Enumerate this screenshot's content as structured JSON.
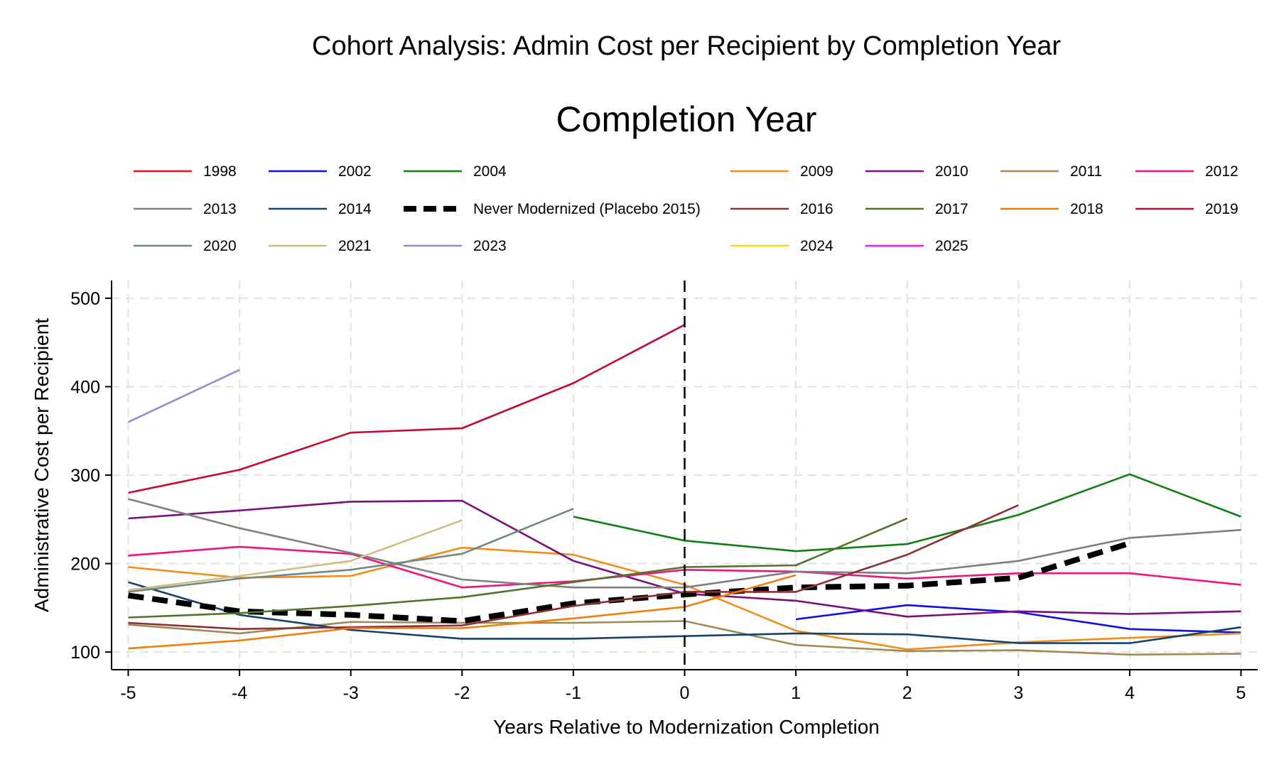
{
  "chart_data": {
    "type": "line",
    "title": "Cohort Analysis: Admin Cost per Recipient by Completion Year",
    "legend_title": "Completion Year",
    "xlabel": "Years Relative to Modernization Completion",
    "ylabel": "Administrative Cost per Recipient",
    "xlim": [
      -5.15,
      5.15
    ],
    "ylim": [
      80,
      520
    ],
    "x_ticks": [
      -5,
      -4,
      -3,
      -2,
      -1,
      0,
      1,
      2,
      3,
      4,
      5
    ],
    "y_ticks": [
      100,
      200,
      300,
      400,
      500
    ],
    "grid": true,
    "reference_line_x": 0,
    "legend_position": "top",
    "series": [
      {
        "name": "1998",
        "color": "#e8101c",
        "x": [],
        "y": []
      },
      {
        "name": "2002",
        "color": "#1010e0",
        "x": [
          1,
          2,
          3,
          4,
          5
        ],
        "y": [
          137,
          153,
          145,
          126,
          122
        ]
      },
      {
        "name": "2004",
        "color": "#108010",
        "x": [
          -1,
          0,
          1,
          2,
          3,
          4,
          5
        ],
        "y": [
          253,
          226,
          214,
          222,
          255,
          301,
          253
        ]
      },
      {
        "name": "2009",
        "color": "#f28c1a",
        "x": [
          -5,
          -4,
          -3,
          -2,
          -1,
          0,
          1,
          2,
          3,
          4,
          5
        ],
        "y": [
          196,
          184,
          186,
          218,
          210,
          176,
          124,
          103,
          111,
          116,
          121
        ]
      },
      {
        "name": "2010",
        "color": "#7b0f80",
        "x": [
          -5,
          -4,
          -3,
          -2,
          -1,
          0,
          1,
          2,
          3,
          4,
          5
        ],
        "y": [
          251,
          260,
          270,
          271,
          203,
          166,
          158,
          140,
          146,
          143,
          146
        ]
      },
      {
        "name": "2011",
        "color": "#9e8b55",
        "x": [
          -5,
          -4,
          -3,
          -2,
          -1,
          0,
          1,
          2,
          3,
          4,
          5
        ],
        "y": [
          131,
          121,
          134,
          133,
          133,
          135,
          108,
          101,
          102,
          97,
          98
        ]
      },
      {
        "name": "2012",
        "color": "#ef1480",
        "x": [
          -5,
          -4,
          -3,
          -2,
          -1,
          0,
          1,
          2,
          3,
          4,
          5
        ],
        "y": [
          209,
          219,
          211,
          173,
          180,
          193,
          191,
          183,
          189,
          189,
          176
        ]
      },
      {
        "name": "2013",
        "color": "#7f7f7f",
        "x": [
          -5,
          -4,
          -3,
          -2,
          -1,
          0,
          1,
          2,
          3,
          4,
          5
        ],
        "y": [
          273,
          240,
          212,
          182,
          173,
          173,
          191,
          189,
          203,
          229,
          238
        ]
      },
      {
        "name": "2014",
        "color": "#16436b",
        "x": [
          -5,
          -4,
          -3,
          -2,
          -1,
          0,
          1,
          2,
          3,
          4,
          5
        ],
        "y": [
          179,
          142,
          125,
          115,
          115,
          118,
          121,
          120,
          110,
          110,
          128
        ]
      },
      {
        "name": "Never Modernized (Placebo 2015)",
        "color": "#000000",
        "dashed": true,
        "x": [
          -5,
          -4,
          -3,
          -2,
          -1,
          0,
          1,
          2,
          3,
          4
        ],
        "y": [
          164,
          146,
          142,
          135,
          155,
          165,
          173,
          175,
          184,
          223
        ]
      },
      {
        "name": "2016",
        "color": "#8e3038",
        "x": [
          -5,
          -4,
          -3,
          -2,
          -1,
          0,
          1,
          2,
          3
        ],
        "y": [
          133,
          126,
          128,
          130,
          152,
          168,
          168,
          210,
          266
        ]
      },
      {
        "name": "2017",
        "color": "#55742a",
        "x": [
          -5,
          -4,
          -3,
          -2,
          -1,
          0,
          1,
          2
        ],
        "y": [
          139,
          144,
          152,
          162,
          179,
          196,
          198,
          251
        ]
      },
      {
        "name": "2018",
        "color": "#ef7f08",
        "x": [
          -5,
          -4,
          -3,
          -2,
          -1,
          0,
          1
        ],
        "y": [
          104,
          113,
          127,
          127,
          138,
          151,
          187
        ]
      },
      {
        "name": "2019",
        "color": "#c10a36",
        "x": [
          -5,
          -4,
          -3,
          -2,
          -1,
          0
        ],
        "y": [
          280,
          306,
          348,
          353,
          404,
          470
        ]
      },
      {
        "name": "2020",
        "color": "#6f8a86",
        "x": [
          -5,
          -4,
          -3,
          -2,
          -1
        ],
        "y": [
          168,
          183,
          193,
          211,
          262
        ]
      },
      {
        "name": "2021",
        "color": "#cdbf84",
        "x": [
          -5,
          -4,
          -3,
          -2
        ],
        "y": [
          170,
          186,
          203,
          249
        ]
      },
      {
        "name": "2023",
        "color": "#9b87d3",
        "x": [
          -5,
          -4
        ],
        "y": [
          360,
          419
        ]
      },
      {
        "name": "2024",
        "color": "#ffd21a",
        "x": [],
        "y": []
      },
      {
        "name": "2025",
        "color": "#ff1aef",
        "x": [],
        "y": []
      }
    ]
  },
  "legend_order": [
    "1998",
    "2002",
    "2004",
    "2009",
    "2010",
    "2011",
    "2012",
    "2013",
    "2014",
    "Never Modernized (Placebo 2015)",
    "2016",
    "2017",
    "2018",
    "2019",
    "2020",
    "2021",
    "2023",
    "2024",
    "2025"
  ]
}
